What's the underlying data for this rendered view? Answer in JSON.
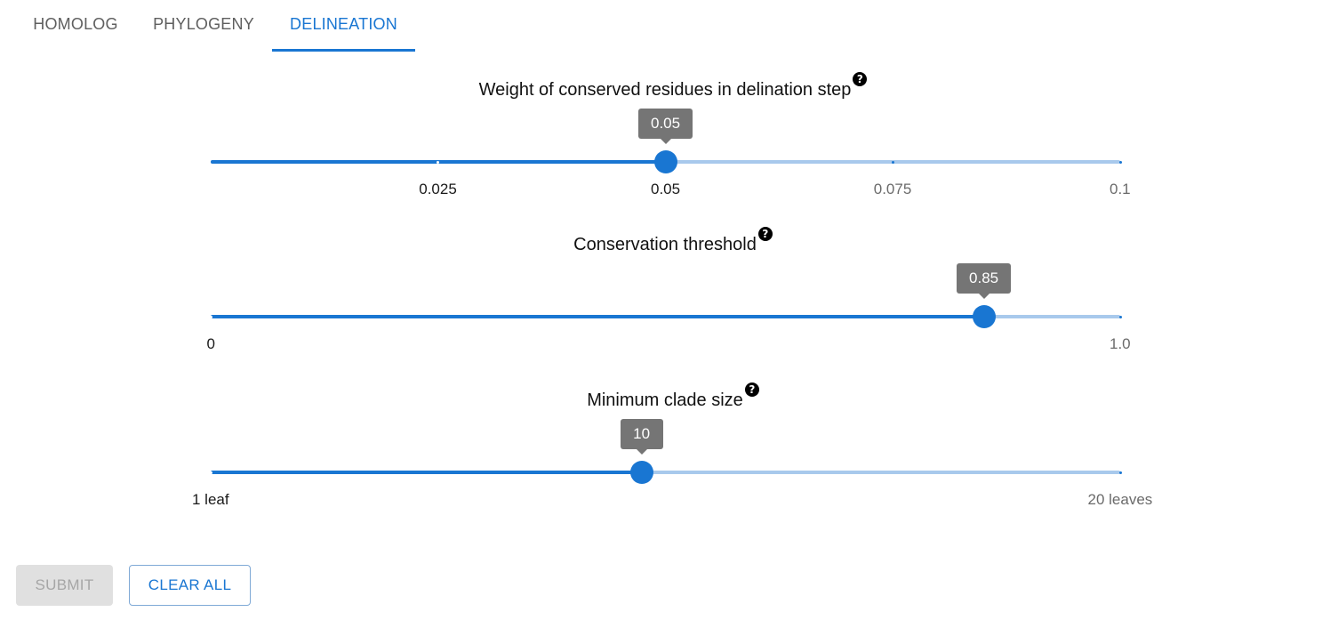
{
  "tabs": [
    {
      "label": "HOMOLOG",
      "active": false
    },
    {
      "label": "PHYLOGENY",
      "active": false
    },
    {
      "label": "DELINEATION",
      "active": true
    }
  ],
  "sliders": [
    {
      "title": "Weight of conserved residues in delination step",
      "help_icon": "question-circle-icon",
      "value": 0.05,
      "value_label": "0.05",
      "min": 0.0,
      "max": 0.1,
      "marks": [
        {
          "value": 0.025,
          "label": "0.025"
        },
        {
          "value": 0.05,
          "label": "0.05"
        },
        {
          "value": 0.075,
          "label": "0.075"
        },
        {
          "value": 0.1,
          "label": "0.1"
        }
      ]
    },
    {
      "title": "Conservation threshold",
      "help_icon": "question-circle-icon",
      "value": 0.85,
      "value_label": "0.85",
      "min": 0,
      "max": 1.0,
      "marks": [
        {
          "value": 0,
          "label": "0"
        },
        {
          "value": 1.0,
          "label": "1.0"
        }
      ]
    },
    {
      "title": "Minimum clade size",
      "help_icon": "question-circle-icon",
      "value": 10,
      "value_label": "10",
      "min": 1,
      "max": 20,
      "marks": [
        {
          "value": 1,
          "label": "1 leaf"
        },
        {
          "value": 20,
          "label": "20 leaves"
        }
      ]
    }
  ],
  "help_glyph": "?",
  "buttons": {
    "submit_label": "SUBMIT",
    "submit_disabled": true,
    "clear_label": "CLEAR ALL"
  },
  "colors": {
    "accent": "#1976d2",
    "track_inactive": "#a8c9ec",
    "value_label_bg": "#757575",
    "disabled_bg": "#e0e0e0",
    "disabled_text": "#a6a6a6"
  }
}
